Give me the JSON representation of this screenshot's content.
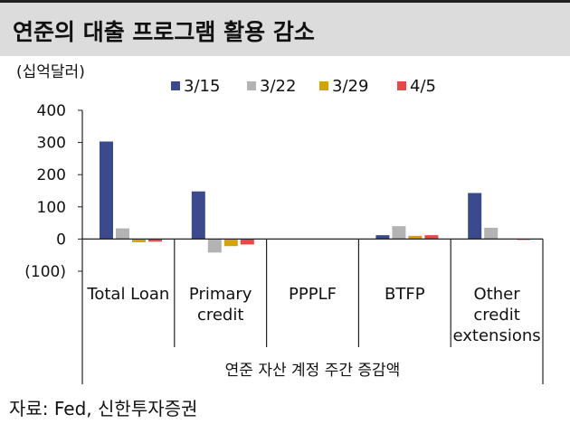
{
  "header": {
    "title": "연준의 대출 프로그램 활용 감소"
  },
  "footer": {
    "source": "자료: Fed, 신한투자증권"
  },
  "chart_data": {
    "type": "bar",
    "title": "연준의 대출 프로그램 활용 감소",
    "unit_label": "(십억달러)",
    "xlabel": "연준 자산 계정 주간 증감액",
    "ylabel": "",
    "ylim": [
      -100,
      400
    ],
    "yticks": [
      400,
      300,
      200,
      100,
      0,
      -100
    ],
    "ytick_labels": [
      "400",
      "300",
      "200",
      "100",
      "0",
      "(100)"
    ],
    "categories": [
      [
        "Total Loan"
      ],
      [
        "Primary",
        "credit"
      ],
      [
        "PPPLF"
      ],
      [
        "BTFP"
      ],
      [
        "Other",
        "credit",
        "extensions"
      ]
    ],
    "series": [
      {
        "name": "3/15",
        "color": "#3b4a8c",
        "values": [
          303,
          148,
          0,
          12,
          143
        ]
      },
      {
        "name": "3/22",
        "color": "#b3b3b3",
        "values": [
          33,
          -42,
          0,
          40,
          35
        ]
      },
      {
        "name": "3/29",
        "color": "#d4a20c",
        "values": [
          -10,
          -22,
          0,
          10,
          0
        ]
      },
      {
        "name": "4/5",
        "color": "#e8484a",
        "values": [
          -8,
          -17,
          0,
          12,
          -2
        ]
      }
    ],
    "legend_position": "top",
    "grid": false
  }
}
